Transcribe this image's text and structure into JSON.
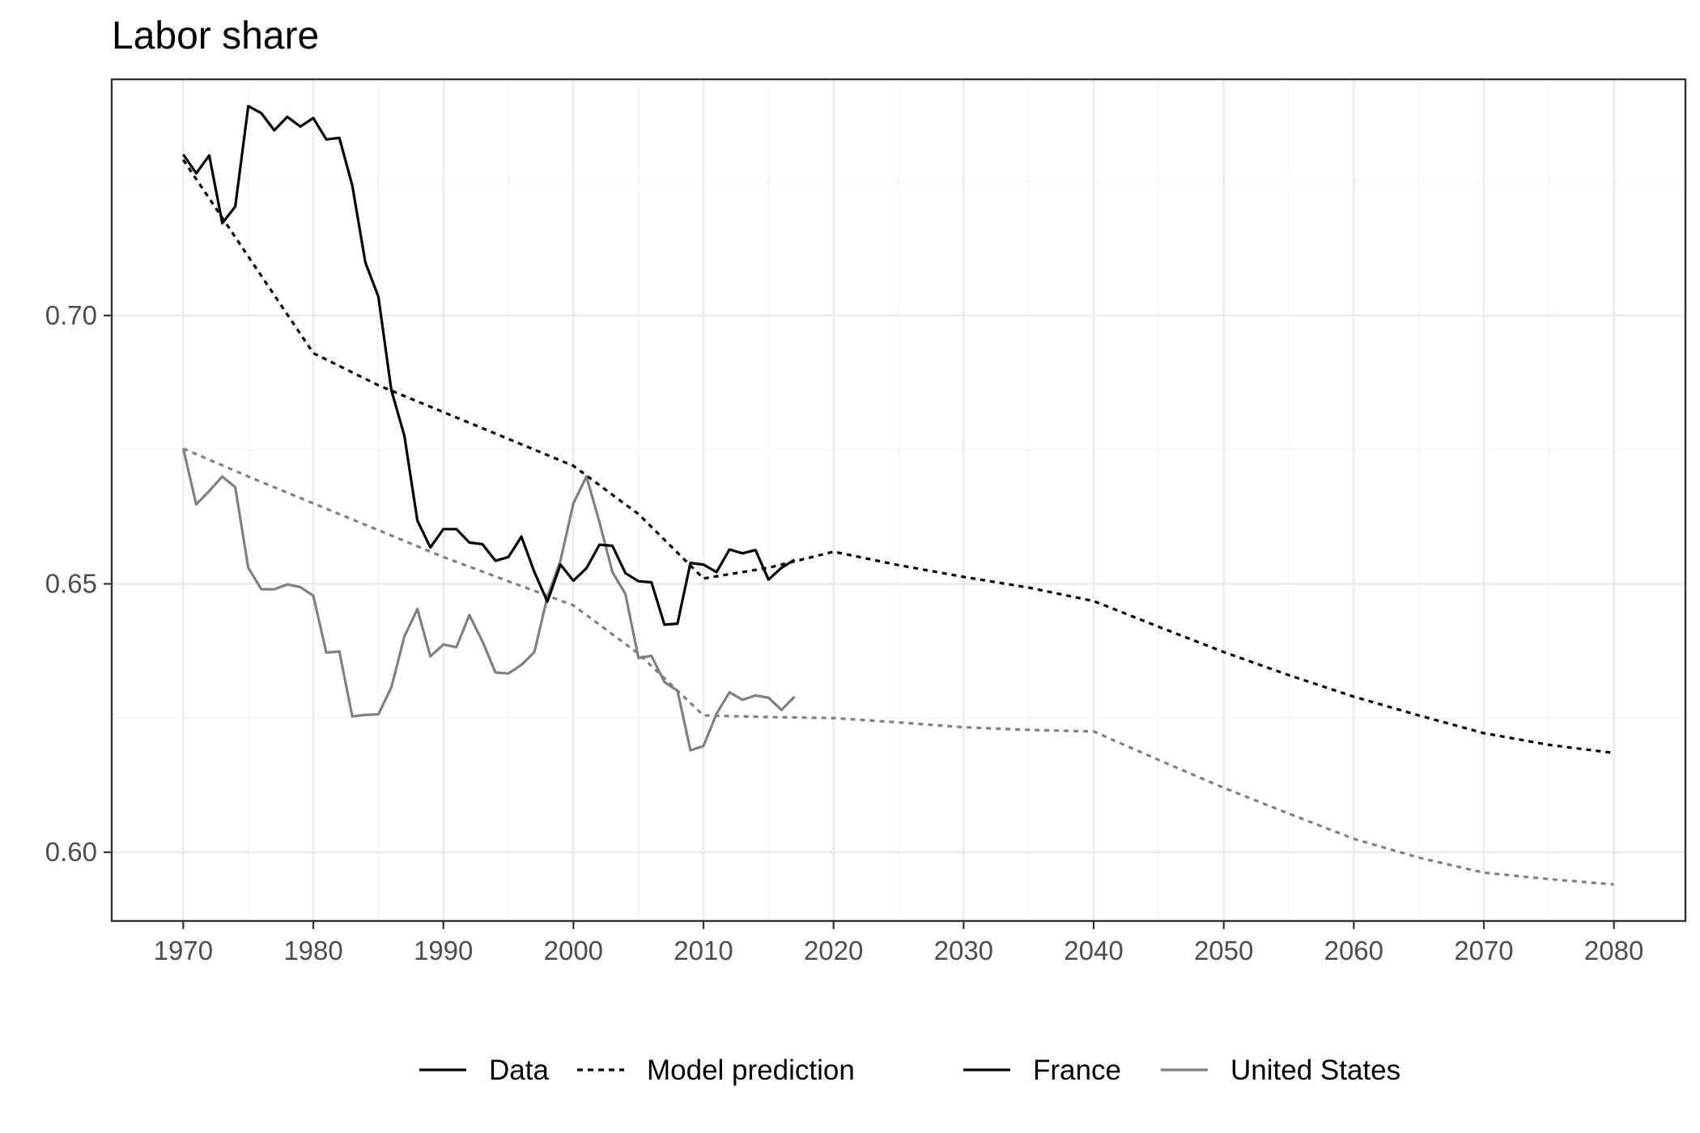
{
  "chart_data": {
    "type": "line",
    "title": "Labor share",
    "xlabel": "",
    "ylabel": "",
    "xlim": [
      1964.5,
      2085.5
    ],
    "ylim": [
      0.5872,
      0.744
    ],
    "x_ticks": [
      1970,
      1980,
      1990,
      2000,
      2010,
      2020,
      2030,
      2040,
      2050,
      2060,
      2070,
      2080
    ],
    "x_tick_labels": [
      "1970",
      "1980",
      "1990",
      "2000",
      "2010",
      "2020",
      "2030",
      "2040",
      "2050",
      "2060",
      "2070",
      "2080"
    ],
    "y_ticks": [
      0.6,
      0.65,
      0.7
    ],
    "y_tick_labels": [
      "0.60",
      "0.65",
      "0.70"
    ],
    "grid": true,
    "legend": {
      "position": "bottom",
      "linetype_entries": [
        {
          "label": "Data",
          "dash": "solid"
        },
        {
          "label": "Model prediction",
          "dash": "dashed"
        }
      ],
      "color_entries": [
        {
          "label": "France",
          "color": "#000000"
        },
        {
          "label": "United States",
          "color": "#808080"
        }
      ]
    },
    "series": [
      {
        "name": "France",
        "kind": "Data",
        "color": "#000000",
        "dash": "solid",
        "x": [
          1970,
          1971,
          1972,
          1973,
          1974,
          1975,
          1976,
          1977,
          1978,
          1979,
          1980,
          1981,
          1982,
          1983,
          1984,
          1985,
          1986,
          1987,
          1988,
          1989,
          1990,
          1991,
          1992,
          1993,
          1994,
          1995,
          1996,
          1997,
          1998,
          1999,
          2000,
          2001,
          2002,
          2003,
          2004,
          2005,
          2006,
          2007,
          2008,
          2009,
          2010,
          2011,
          2012,
          2013,
          2014,
          2015,
          2016,
          2017
        ],
        "y": [
          0.73,
          0.7265,
          0.7298,
          0.7172,
          0.7203,
          0.739,
          0.7377,
          0.7345,
          0.737,
          0.7352,
          0.7368,
          0.7328,
          0.7331,
          0.7242,
          0.7099,
          0.7035,
          0.6861,
          0.6776,
          0.6618,
          0.6568,
          0.6602,
          0.6602,
          0.6577,
          0.6574,
          0.6543,
          0.655,
          0.6588,
          0.6522,
          0.6467,
          0.6536,
          0.6506,
          0.6529,
          0.6573,
          0.6571,
          0.652,
          0.6505,
          0.6503,
          0.6424,
          0.6426,
          0.6539,
          0.6536,
          0.6522,
          0.6564,
          0.6557,
          0.6563,
          0.6508,
          0.653,
          0.6545
        ]
      },
      {
        "name": "United States",
        "kind": "Data",
        "color": "#808080",
        "dash": "solid",
        "x": [
          1970,
          1971,
          1972,
          1973,
          1974,
          1975,
          1976,
          1977,
          1978,
          1979,
          1980,
          1981,
          1982,
          1983,
          1984,
          1985,
          1986,
          1987,
          1988,
          1989,
          1990,
          1991,
          1992,
          1993,
          1994,
          1995,
          1996,
          1997,
          1998,
          1999,
          2000,
          2001,
          2002,
          2003,
          2004,
          2005,
          2006,
          2007,
          2008,
          2009,
          2010,
          2011,
          2012,
          2013,
          2014,
          2015,
          2016,
          2017
        ],
        "y": [
          0.6752,
          0.6648,
          0.6673,
          0.67,
          0.668,
          0.653,
          0.649,
          0.649,
          0.6499,
          0.6494,
          0.6478,
          0.6372,
          0.6374,
          0.6253,
          0.6256,
          0.6257,
          0.6307,
          0.6402,
          0.6453,
          0.6365,
          0.6387,
          0.6382,
          0.6442,
          0.6393,
          0.6335,
          0.6333,
          0.6349,
          0.6373,
          0.6476,
          0.6543,
          0.665,
          0.67,
          0.6615,
          0.6522,
          0.6481,
          0.6362,
          0.6366,
          0.6317,
          0.6301,
          0.619,
          0.6198,
          0.6258,
          0.6298,
          0.6284,
          0.6292,
          0.6288,
          0.6265,
          0.629
        ]
      },
      {
        "name": "France",
        "kind": "Model prediction",
        "color": "#000000",
        "dash": "dashed",
        "x": [
          1970,
          1975,
          1980,
          1985,
          1990,
          1995,
          2000,
          2005,
          2010,
          2015,
          2020,
          2025,
          2030,
          2035,
          2040,
          2045,
          2050,
          2055,
          2060,
          2065,
          2070,
          2075,
          2080
        ],
        "y": [
          0.729,
          0.711,
          0.693,
          0.687,
          0.682,
          0.677,
          0.672,
          0.663,
          0.651,
          0.653,
          0.656,
          0.6535,
          0.6513,
          0.6493,
          0.6468,
          0.642,
          0.6373,
          0.633,
          0.629,
          0.6255,
          0.6222,
          0.62,
          0.6185
        ]
      },
      {
        "name": "United States",
        "kind": "Model prediction",
        "color": "#808080",
        "dash": "dashed",
        "x": [
          1970,
          1975,
          1980,
          1985,
          1990,
          1995,
          2000,
          2005,
          2010,
          2015,
          2020,
          2025,
          2030,
          2035,
          2040,
          2045,
          2050,
          2055,
          2060,
          2065,
          2070,
          2075,
          2080
        ],
        "y": [
          0.6752,
          0.67,
          0.665,
          0.66,
          0.655,
          0.6505,
          0.646,
          0.637,
          0.6255,
          0.6252,
          0.625,
          0.6242,
          0.6233,
          0.6228,
          0.6225,
          0.6172,
          0.612,
          0.6072,
          0.6025,
          0.599,
          0.5962,
          0.595,
          0.594
        ]
      }
    ]
  }
}
